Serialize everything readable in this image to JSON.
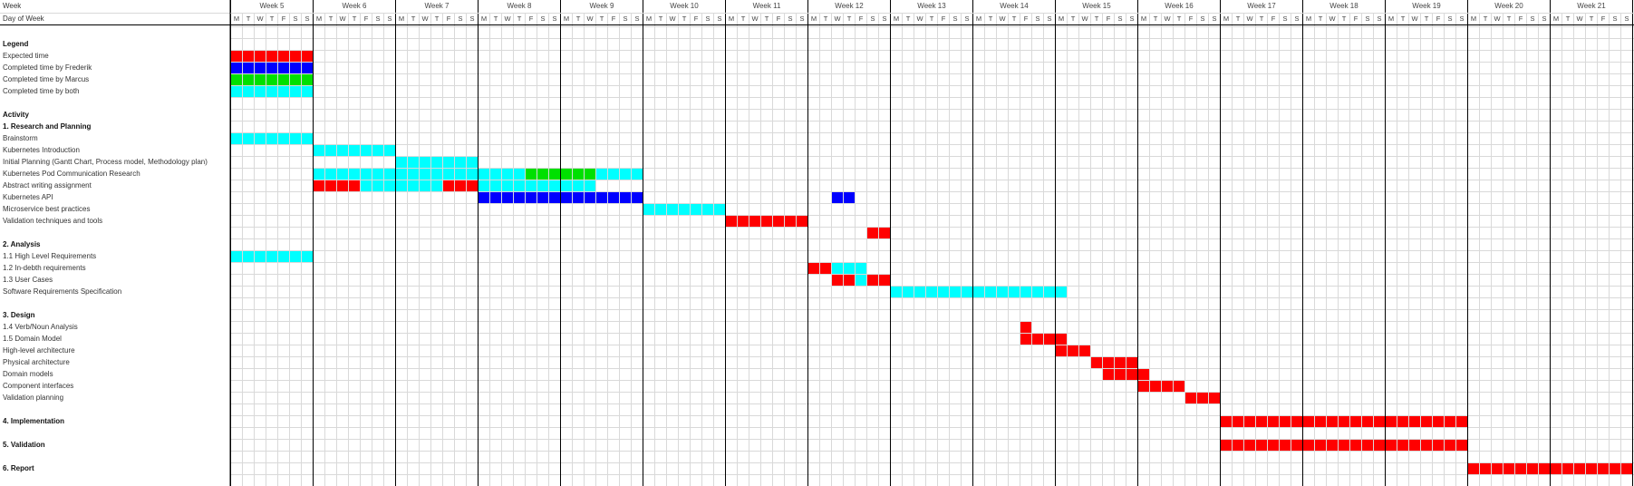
{
  "header": {
    "week_row_label": "Week",
    "day_row_label": "Day of Week",
    "weeks": [
      "Week 5",
      "Week 6",
      "Week 7",
      "Week 8",
      "Week 9",
      "Week 10",
      "Week 11",
      "Week 12",
      "Week 13",
      "Week 14",
      "Week 15",
      "Week 16",
      "Week 17",
      "Week 18",
      "Week 19",
      "Week 20",
      "Week 21"
    ],
    "days": [
      "M",
      "T",
      "W",
      "T",
      "F",
      "S",
      "S"
    ]
  },
  "colors": {
    "expected": "#ff0000",
    "frederik": "#0000ff",
    "marcus": "#00e000",
    "both": "#00ffff",
    "grid": "#d9d9d9",
    "week_border": "#000000"
  },
  "rows": [
    {
      "label": "",
      "bold": false
    },
    {
      "label": "Legend",
      "bold": true
    },
    {
      "label": "Expected time",
      "bold": false,
      "bars": [
        {
          "start": 0,
          "len": 7,
          "color": "expected"
        }
      ]
    },
    {
      "label": "Completed time by Frederik",
      "bold": false,
      "bars": [
        {
          "start": 0,
          "len": 7,
          "color": "frederik"
        }
      ]
    },
    {
      "label": "Completed time by Marcus",
      "bold": false,
      "bars": [
        {
          "start": 0,
          "len": 7,
          "color": "marcus"
        }
      ]
    },
    {
      "label": "Completed time by both",
      "bold": false,
      "bars": [
        {
          "start": 0,
          "len": 7,
          "color": "both"
        }
      ]
    },
    {
      "label": "",
      "bold": false
    },
    {
      "label": "Activity",
      "bold": true
    },
    {
      "label": "1. Research and Planning",
      "bold": true
    },
    {
      "label": "Brainstorm",
      "bold": false,
      "bars": [
        {
          "start": 0,
          "len": 7,
          "color": "both"
        }
      ]
    },
    {
      "label": "Kubernetes Introduction",
      "bold": false,
      "bars": [
        {
          "start": 7,
          "len": 7,
          "color": "both"
        }
      ]
    },
    {
      "label": "Initial Planning (Gantt Chart, Process model, Methodology plan)",
      "bold": false,
      "bars": [
        {
          "start": 14,
          "len": 7,
          "color": "both"
        }
      ]
    },
    {
      "label": "Kubernetes Pod Communication Research",
      "bold": false,
      "bars": [
        {
          "start": 7,
          "len": 18,
          "color": "both"
        },
        {
          "start": 25,
          "len": 6,
          "color": "marcus"
        },
        {
          "start": 31,
          "len": 4,
          "color": "both"
        }
      ]
    },
    {
      "label": "Abstract writing assignment",
      "bold": false,
      "bars": [
        {
          "start": 7,
          "len": 4,
          "color": "expected"
        },
        {
          "start": 11,
          "len": 7,
          "color": "both"
        },
        {
          "start": 18,
          "len": 3,
          "color": "expected"
        },
        {
          "start": 21,
          "len": 10,
          "color": "both"
        }
      ]
    },
    {
      "label": "Kubernetes API",
      "bold": false,
      "bars": [
        {
          "start": 21,
          "len": 14,
          "color": "frederik"
        },
        {
          "start": 51,
          "len": 2,
          "color": "frederik"
        }
      ]
    },
    {
      "label": "Microservice best practices",
      "bold": false,
      "bars": [
        {
          "start": 35,
          "len": 7,
          "color": "both"
        }
      ]
    },
    {
      "label": "Validation techniques and tools",
      "bold": false,
      "bars": [
        {
          "start": 42,
          "len": 7,
          "color": "expected"
        }
      ]
    },
    {
      "label": "",
      "bold": false,
      "bars": [
        {
          "start": 54,
          "len": 2,
          "color": "expected"
        }
      ]
    },
    {
      "label": "2. Analysis",
      "bold": true
    },
    {
      "label": "1.1 High Level Requirements",
      "bold": false,
      "bars": [
        {
          "start": 0,
          "len": 7,
          "color": "both"
        }
      ]
    },
    {
      "label": "1.2 In-debth requirements",
      "bold": false,
      "bars": [
        {
          "start": 49,
          "len": 2,
          "color": "expected"
        },
        {
          "start": 51,
          "len": 3,
          "color": "both"
        }
      ]
    },
    {
      "label": "1.3 User Cases",
      "bold": false,
      "bars": [
        {
          "start": 51,
          "len": 2,
          "color": "expected"
        },
        {
          "start": 53,
          "len": 1,
          "color": "both"
        },
        {
          "start": 54,
          "len": 2,
          "color": "expected"
        }
      ]
    },
    {
      "label": "Software Requirements Specification",
      "bold": false,
      "bars": [
        {
          "start": 56,
          "len": 15,
          "color": "both"
        }
      ]
    },
    {
      "label": "",
      "bold": false
    },
    {
      "label": "3. Design",
      "bold": true
    },
    {
      "label": "1.4 Verb/Noun Analysis",
      "bold": false,
      "bars": [
        {
          "start": 67,
          "len": 1,
          "color": "expected"
        }
      ]
    },
    {
      "label": "1.5 Domain Model",
      "bold": false,
      "bars": [
        {
          "start": 67,
          "len": 4,
          "color": "expected"
        }
      ]
    },
    {
      "label": "High-level architecture",
      "bold": false,
      "bars": [
        {
          "start": 70,
          "len": 3,
          "color": "expected"
        }
      ]
    },
    {
      "label": "Physical architecture",
      "bold": false,
      "bars": [
        {
          "start": 73,
          "len": 4,
          "color": "expected"
        }
      ]
    },
    {
      "label": "Domain models",
      "bold": false,
      "bars": [
        {
          "start": 74,
          "len": 4,
          "color": "expected"
        }
      ]
    },
    {
      "label": "Component interfaces",
      "bold": false,
      "bars": [
        {
          "start": 77,
          "len": 4,
          "color": "expected"
        }
      ]
    },
    {
      "label": "Validation planning",
      "bold": false,
      "bars": [
        {
          "start": 81,
          "len": 3,
          "color": "expected"
        }
      ]
    },
    {
      "label": "",
      "bold": false
    },
    {
      "label": "4. Implementation",
      "bold": true,
      "bars": [
        {
          "start": 84,
          "len": 21,
          "color": "expected"
        }
      ]
    },
    {
      "label": "",
      "bold": false
    },
    {
      "label": "5. Validation",
      "bold": true,
      "bars": [
        {
          "start": 84,
          "len": 21,
          "color": "expected"
        }
      ]
    },
    {
      "label": "",
      "bold": false
    },
    {
      "label": "6. Report",
      "bold": true,
      "bars": [
        {
          "start": 105,
          "len": 14,
          "color": "expected"
        }
      ]
    },
    {
      "label": "",
      "bold": false
    }
  ]
}
